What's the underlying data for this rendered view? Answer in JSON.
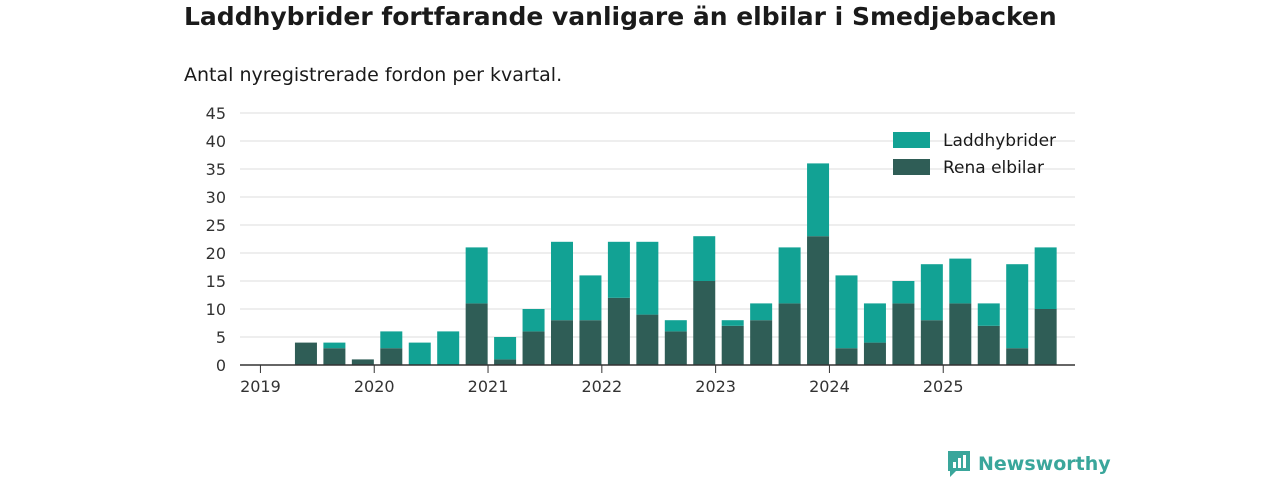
{
  "title": "Laddhybrider fortfarande vanligare än elbilar i Smedjebacken",
  "subtitle": "Antal nyregistrerade fordon per kvartal.",
  "brand": "Newsworthy",
  "chart_data": {
    "type": "bar",
    "stacked": true,
    "categories": [
      "2019 Q1",
      "2019 Q2",
      "2019 Q3",
      "2019 Q4",
      "2020 Q1",
      "2020 Q2",
      "2020 Q3",
      "2020 Q4",
      "2021 Q1",
      "2021 Q2",
      "2021 Q3",
      "2021 Q4",
      "2022 Q1",
      "2022 Q2",
      "2022 Q3",
      "2022 Q4",
      "2023 Q1",
      "2023 Q2",
      "2023 Q3",
      "2023 Q4",
      "2024 Q1",
      "2024 Q2",
      "2024 Q3",
      "2024 Q4",
      "2025 Q1",
      "2025 Q2",
      "2025 Q3",
      "2025 Q4"
    ],
    "x_tick_labels": [
      "2019",
      "2020",
      "2021",
      "2022",
      "2023",
      "2024",
      "2025"
    ],
    "y_ticks": [
      0,
      5,
      10,
      15,
      20,
      25,
      30,
      35,
      40,
      45
    ],
    "ylim": [
      0,
      45
    ],
    "legend_position": "top-right",
    "series": [
      {
        "name": "Rena elbilar",
        "color": "#2f5d56",
        "values": [
          0,
          4,
          3,
          1,
          3,
          0,
          0,
          11,
          1,
          6,
          8,
          8,
          12,
          9,
          6,
          15,
          7,
          8,
          11,
          23,
          3,
          4,
          11,
          8,
          11,
          7,
          3,
          10
        ]
      },
      {
        "name": "Laddhybrider",
        "color": "#12a294",
        "values": [
          0,
          0,
          1,
          0,
          3,
          4,
          6,
          10,
          4,
          4,
          14,
          8,
          10,
          13,
          2,
          8,
          1,
          3,
          10,
          13,
          13,
          7,
          4,
          10,
          8,
          4,
          15,
          11
        ]
      }
    ],
    "legend": [
      "Laddhybrider",
      "Rena elbilar"
    ]
  }
}
